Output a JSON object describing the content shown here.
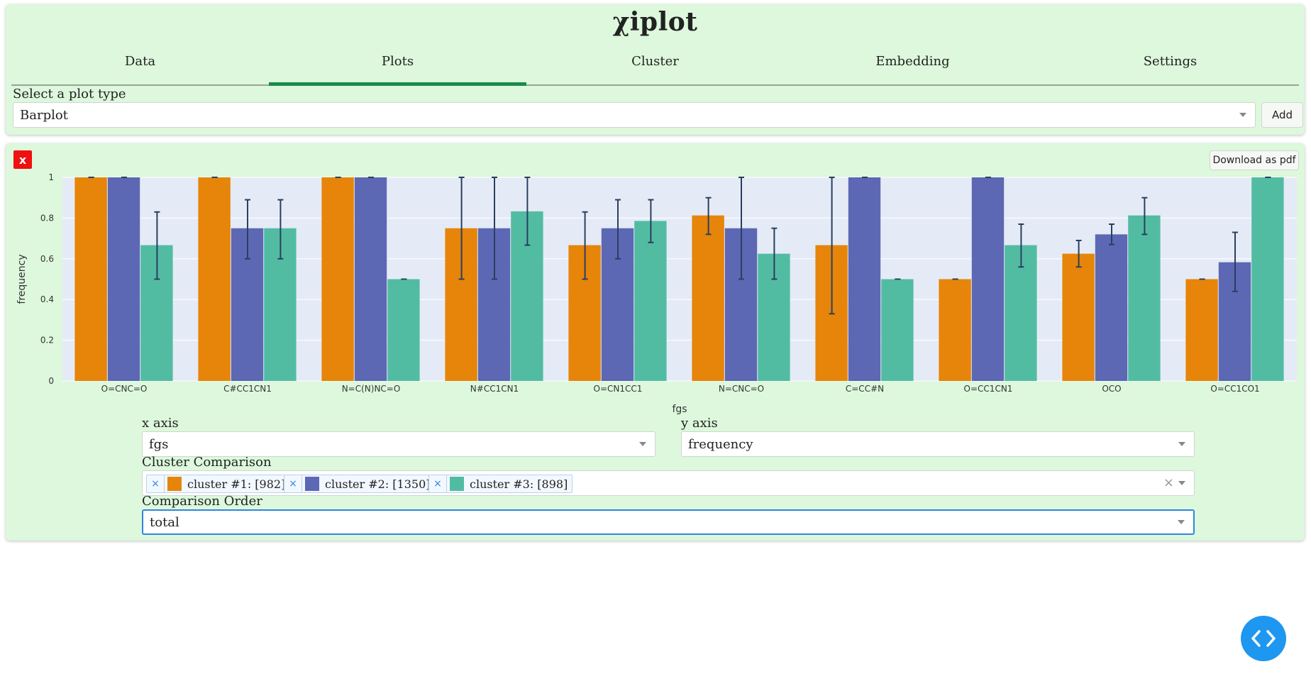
{
  "app": {
    "title": "χiplot"
  },
  "tabs": [
    {
      "label": "Data",
      "active": false
    },
    {
      "label": "Plots",
      "active": true
    },
    {
      "label": "Cluster",
      "active": false
    },
    {
      "label": "Embedding",
      "active": false
    },
    {
      "label": "Settings",
      "active": false
    }
  ],
  "plot_type": {
    "label": "Select a plot type",
    "value": "Barplot",
    "add_label": "Add"
  },
  "plot": {
    "close_label": "x",
    "download_label": "Download as pdf",
    "x_axis": {
      "label": "x axis",
      "value": "fgs"
    },
    "y_axis": {
      "label": "y axis",
      "value": "frequency"
    },
    "cluster_comparison": {
      "label": "Cluster Comparison",
      "tags": [
        {
          "label": "cluster #1: [982]",
          "color": "#e6850a"
        },
        {
          "label": "cluster #2: [1350]",
          "color": "#5c68b4"
        },
        {
          "label": "cluster #3: [898]",
          "color": "#52bca3"
        }
      ]
    },
    "comparison_order": {
      "label": "Comparison Order",
      "value": "total"
    }
  },
  "chart_data": {
    "type": "bar",
    "xlabel": "fgs",
    "ylabel": "frequency",
    "ylim": [
      0,
      1
    ],
    "yticks": [
      "0",
      "0.2",
      "0.4",
      "0.6",
      "0.8",
      "1"
    ],
    "grid": true,
    "categories": [
      "O=CNC=O",
      "C#CC1CN1",
      "N=C(N)NC=O",
      "N#CC1CN1",
      "O=CN1CC1",
      "N=CNC=O",
      "C=CC#N",
      "O=CC1CN1",
      "OCO",
      "O=CC1CO1"
    ],
    "series": [
      {
        "color": "#e6850a",
        "values": [
          1.0,
          1.0,
          1.0,
          0.75,
          0.667,
          0.813,
          0.667,
          0.5,
          0.625,
          0.5
        ],
        "error_low": [
          1.0,
          1.0,
          1.0,
          0.5,
          0.5,
          0.72,
          0.33,
          0.5,
          0.56,
          0.5
        ],
        "error_high": [
          1.0,
          1.0,
          1.0,
          1.0,
          0.83,
          0.9,
          1.0,
          0.5,
          0.69,
          0.5
        ]
      },
      {
        "color": "#5c68b4",
        "values": [
          1.0,
          0.75,
          1.0,
          0.75,
          0.75,
          0.75,
          1.0,
          1.0,
          0.72,
          0.583
        ],
        "error_low": [
          1.0,
          0.6,
          1.0,
          0.5,
          0.6,
          0.5,
          1.0,
          1.0,
          0.67,
          0.44
        ],
        "error_high": [
          1.0,
          0.89,
          1.0,
          1.0,
          0.89,
          1.0,
          1.0,
          1.0,
          0.77,
          0.73
        ]
      },
      {
        "color": "#52bca3",
        "values": [
          0.667,
          0.75,
          0.5,
          0.833,
          0.786,
          0.625,
          0.5,
          0.667,
          0.813,
          1.0
        ],
        "error_low": [
          0.5,
          0.6,
          0.5,
          0.667,
          0.68,
          0.5,
          0.5,
          0.56,
          0.72,
          1.0
        ],
        "error_high": [
          0.83,
          0.89,
          0.5,
          1.0,
          0.89,
          0.75,
          0.5,
          0.77,
          0.9,
          1.0
        ]
      }
    ]
  }
}
